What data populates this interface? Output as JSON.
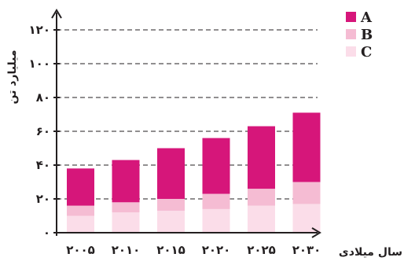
{
  "chart_data": {
    "type": "bar",
    "stacked": true,
    "categories": [
      "۲۰۰۵",
      "۲۰۱۰",
      "۲۰۱۵",
      "۲۰۲۰",
      "۲۰۲۵",
      "۲۰۳۰"
    ],
    "series": [
      {
        "name": "C",
        "color": "#fbdde9",
        "values": [
          10,
          12,
          13,
          14,
          16,
          17
        ]
      },
      {
        "name": "B",
        "color": "#f5bcd3",
        "values": [
          6,
          6,
          7,
          9,
          10,
          13
        ]
      },
      {
        "name": "A",
        "color": "#d6167a",
        "values": [
          22,
          25,
          30,
          33,
          37,
          41
        ]
      }
    ],
    "xlabel": "سال میلادی",
    "ylabel": "میلیارد تن",
    "ylim": [
      0,
      130
    ],
    "yticks": [
      0,
      20,
      40,
      60,
      80,
      100,
      120
    ],
    "ytick_labels": [
      "۰",
      "۲۰",
      "۴۰",
      "۶۰",
      "۸۰",
      "۱۰۰",
      "۱۲۰"
    ],
    "grid": true,
    "legend": "top-right",
    "legend_order": [
      "A",
      "B",
      "C"
    ]
  }
}
